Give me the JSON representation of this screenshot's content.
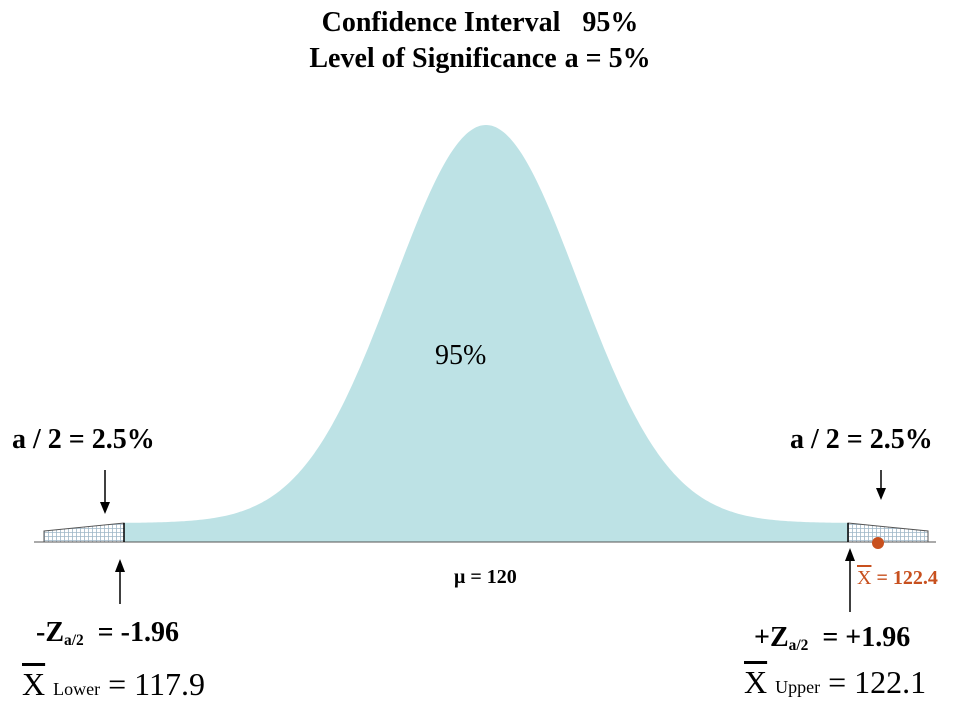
{
  "title": {
    "line1_left": "Confidence Interval",
    "line1_right": "95%",
    "line2_left": "Level of Significance",
    "line2_right": "a = 5%"
  },
  "curve": {
    "center_label": "95%",
    "fill_color": "#bde2e5",
    "tail_hatch_color": "#9fb7c8"
  },
  "tails": {
    "left_label": "a / 2 = 2.5%",
    "right_label": "a / 2 = 2.5%"
  },
  "mean": {
    "symbol": "μ",
    "equals": "= 120"
  },
  "critical": {
    "left_main": "-Z",
    "left_sub": "a/2",
    "left_value": "= -1.96",
    "right_main": "+Z",
    "right_sub": "a/2",
    "right_value": "= +1.96"
  },
  "bounds": {
    "lower_symbol": "X",
    "lower_sub": "Lower",
    "lower_value": "= 117.9",
    "upper_symbol": "X",
    "upper_sub": "Upper",
    "upper_value": "= 122.1"
  },
  "sample": {
    "symbol": "X",
    "value": "= 122.4",
    "color": "#c8501e"
  }
}
